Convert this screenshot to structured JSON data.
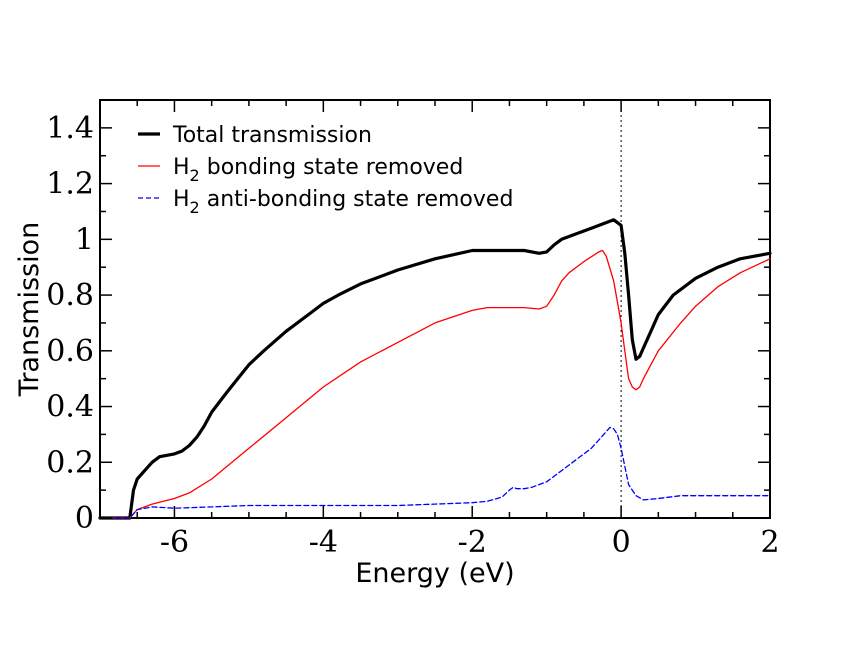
{
  "chart_data": {
    "type": "line",
    "title": "",
    "xlabel": "Energy (eV)",
    "ylabel": "Transmission",
    "xlim": [
      -7,
      2
    ],
    "ylim": [
      0,
      1.5
    ],
    "grid": false,
    "legend_position": "top-left",
    "x_ticks": [
      -6,
      -4,
      -2,
      0,
      2
    ],
    "x_tick_labels": [
      "-6",
      "-4",
      "-2",
      "0",
      "2"
    ],
    "y_ticks": [
      0,
      0.2,
      0.4,
      0.6,
      0.8,
      1.0,
      1.2,
      1.4
    ],
    "y_tick_labels": [
      "0",
      "0.2",
      "0.4",
      "0.6",
      "0.8",
      "1",
      "1.2",
      "1.4"
    ],
    "fermi_marker": {
      "x": 0,
      "style": "dotted"
    },
    "series": [
      {
        "name": "Total transmission",
        "legend_main": "Total transmission",
        "legend_sub": "",
        "legend_rest": "",
        "color": "#000000",
        "style": "solid-thick",
        "x": [
          -7.0,
          -6.6,
          -6.55,
          -6.5,
          -6.4,
          -6.3,
          -6.2,
          -6.1,
          -6.0,
          -5.9,
          -5.8,
          -5.7,
          -5.6,
          -5.5,
          -5.3,
          -5.0,
          -4.8,
          -4.5,
          -4.2,
          -4.0,
          -3.8,
          -3.5,
          -3.0,
          -2.5,
          -2.0,
          -1.8,
          -1.5,
          -1.3,
          -1.1,
          -1.0,
          -0.9,
          -0.8,
          -0.6,
          -0.4,
          -0.2,
          -0.1,
          0.0,
          0.05,
          0.1,
          0.15,
          0.2,
          0.25,
          0.3,
          0.4,
          0.5,
          0.7,
          1.0,
          1.3,
          1.6,
          2.0
        ],
        "y": [
          0.0,
          0.0,
          0.1,
          0.14,
          0.17,
          0.2,
          0.22,
          0.225,
          0.23,
          0.24,
          0.26,
          0.29,
          0.33,
          0.38,
          0.45,
          0.55,
          0.6,
          0.67,
          0.73,
          0.77,
          0.8,
          0.84,
          0.89,
          0.93,
          0.96,
          0.96,
          0.96,
          0.96,
          0.95,
          0.955,
          0.98,
          1.0,
          1.02,
          1.04,
          1.06,
          1.07,
          1.05,
          0.95,
          0.8,
          0.64,
          0.57,
          0.58,
          0.61,
          0.67,
          0.73,
          0.8,
          0.86,
          0.9,
          0.93,
          0.95
        ]
      },
      {
        "name": "H2 bonding state removed",
        "legend_main": "H",
        "legend_sub": "2",
        "legend_rest": " bonding state removed",
        "color": "#ff0000",
        "style": "solid-thin",
        "x": [
          -7.0,
          -6.6,
          -6.5,
          -6.3,
          -6.0,
          -5.8,
          -5.5,
          -5.0,
          -4.5,
          -4.0,
          -3.5,
          -3.0,
          -2.5,
          -2.0,
          -1.8,
          -1.5,
          -1.3,
          -1.1,
          -1.0,
          -0.9,
          -0.8,
          -0.7,
          -0.5,
          -0.3,
          -0.25,
          -0.2,
          -0.1,
          0.0,
          0.05,
          0.1,
          0.15,
          0.2,
          0.25,
          0.3,
          0.5,
          0.8,
          1.0,
          1.3,
          1.6,
          2.0
        ],
        "y": [
          0.0,
          0.0,
          0.03,
          0.05,
          0.07,
          0.09,
          0.14,
          0.25,
          0.36,
          0.47,
          0.56,
          0.63,
          0.7,
          0.745,
          0.755,
          0.755,
          0.755,
          0.75,
          0.76,
          0.8,
          0.85,
          0.88,
          0.92,
          0.955,
          0.96,
          0.94,
          0.85,
          0.7,
          0.6,
          0.5,
          0.47,
          0.46,
          0.47,
          0.5,
          0.6,
          0.7,
          0.76,
          0.83,
          0.88,
          0.93
        ]
      },
      {
        "name": "H2 anti-bonding state removed",
        "legend_main": "H",
        "legend_sub": "2",
        "legend_rest": " anti-bonding state removed",
        "color": "#0000ff",
        "style": "dashed",
        "x": [
          -7.0,
          -6.6,
          -6.5,
          -6.3,
          -6.0,
          -5.5,
          -5.0,
          -4.5,
          -4.0,
          -3.5,
          -3.0,
          -2.5,
          -2.0,
          -1.8,
          -1.6,
          -1.5,
          -1.45,
          -1.4,
          -1.3,
          -1.2,
          -1.0,
          -0.8,
          -0.6,
          -0.4,
          -0.3,
          -0.2,
          -0.15,
          -0.1,
          -0.05,
          0.0,
          0.1,
          0.2,
          0.3,
          0.5,
          0.8,
          1.0,
          1.5,
          2.0
        ],
        "y": [
          0.0,
          0.0,
          0.03,
          0.04,
          0.035,
          0.04,
          0.045,
          0.045,
          0.045,
          0.045,
          0.045,
          0.05,
          0.055,
          0.06,
          0.075,
          0.1,
          0.11,
          0.105,
          0.105,
          0.11,
          0.13,
          0.17,
          0.21,
          0.25,
          0.28,
          0.31,
          0.325,
          0.32,
          0.3,
          0.25,
          0.12,
          0.08,
          0.065,
          0.07,
          0.08,
          0.08,
          0.08,
          0.08
        ]
      }
    ]
  }
}
